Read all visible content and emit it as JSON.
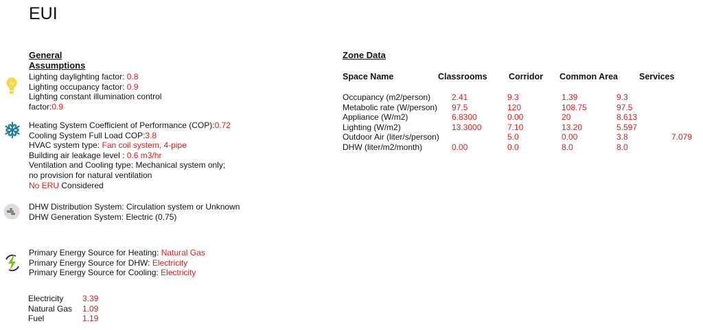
{
  "title": "EUI",
  "general": {
    "heading_line1": "General",
    "heading_line2": "Assumptions",
    "lighting": [
      {
        "label": "Lighting daylighting factor: ",
        "value": "0.8"
      },
      {
        "label": "Lighting occupancy factor: ",
        "value": "0.9"
      },
      {
        "label": "Lighting constant illumination control",
        "value": ""
      },
      {
        "label": "factor:",
        "value": "0.9"
      }
    ],
    "hvac": [
      {
        "label": "Heating System Coefficient of Performance (COP):",
        "value": "0.72"
      },
      {
        "label": "Cooling System Full Load COP:",
        "value": "3.8"
      },
      {
        "label": "HVAC system type: ",
        "value": "Fan coil system, 4-pipe"
      },
      {
        "label": "Building air leakage level : ",
        "value": "0.6 m3/hr"
      },
      {
        "label": "Ventilation and Cooling type: Mechanical system only;",
        "value": ""
      },
      {
        "label": "no provision for natural ventilation",
        "value": ""
      }
    ],
    "eru_value": "No ERU",
    "eru_label": " Considered",
    "dhw": [
      "DHW Distribution System: Circulation system or Unknown",
      "DHW Generation System: Electric (0.75)"
    ],
    "energy": [
      {
        "label": "Primary Energy Source for Heating: ",
        "value": "Natural Gas"
      },
      {
        "label": "Primary Energy Source for DHW: ",
        "value": "Electricity"
      },
      {
        "label": "Primary Energy Source for Cooling: ",
        "value": "Electricity"
      }
    ],
    "factors": [
      {
        "label": "Electricity",
        "value": "3.39"
      },
      {
        "label": "Natural Gas",
        "value": "1.09"
      },
      {
        "label": "Fuel",
        "value": "1.19"
      }
    ],
    "icons": [
      "lightbulb-icon",
      "snowflake-icon",
      "faucet-icon",
      "energy-icon"
    ],
    "accent_color": "#d21f1f"
  },
  "zone": {
    "heading": "Zone Data",
    "headers": [
      "Space Name",
      "Classrooms",
      "Corridor",
      "Common Area",
      "Services"
    ],
    "rows": [
      {
        "label": "Occupancy (m2/person)",
        "values": [
          "2.41",
          "9.3",
          "1.39",
          "9.3",
          ""
        ]
      },
      {
        "label": "Metabolic rate (W/person)",
        "values": [
          "97.5",
          "120",
          "108.75",
          "97.5",
          ""
        ]
      },
      {
        "label": "Appliance (W/m2)",
        "values": [
          "6.8300",
          "0.00",
          "20",
          "8.613",
          ""
        ]
      },
      {
        "label": "Lighting (W/m2)",
        "values": [
          "13.3000",
          "7.10",
          "13.20",
          "5.597",
          ""
        ]
      },
      {
        "label": "Outdoor Air (liter/s/person)",
        "values": [
          "",
          "5.0",
          "0.00",
          "3.8",
          "7.079"
        ]
      },
      {
        "label": "DHW (liter/m2/month)",
        "values": [
          "0.00",
          "0.0",
          "8.0",
          "8.0",
          ""
        ]
      }
    ]
  }
}
